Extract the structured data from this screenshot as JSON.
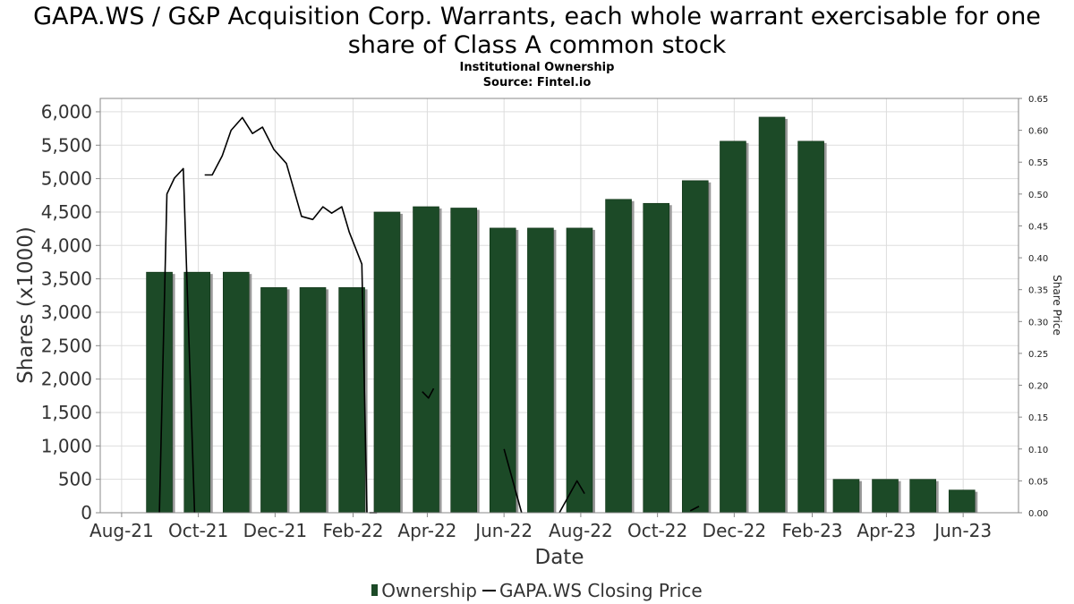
{
  "title_line1": "GAPA.WS / G&P Acquisition Corp. Warrants, each whole warrant exercisable for one",
  "title_line2": "share of Class A common stock",
  "subtitle_line1": "Institutional Ownership",
  "subtitle_line2": "Source: Fintel.io",
  "colors": {
    "bar": "#1c4a27",
    "bar_shadow": "#999999",
    "line": "#000000",
    "grid": "#dddddd"
  },
  "chart_data": {
    "type": "bar",
    "xlabel": "Date",
    "ylabel": "Shares (x1000)",
    "y2label": "Share Price",
    "ylim": [
      0,
      6200
    ],
    "y2lim": [
      0,
      0.65
    ],
    "yticks": [
      0,
      500,
      1000,
      1500,
      2000,
      2500,
      3000,
      3500,
      4000,
      4500,
      5000,
      5500,
      6000
    ],
    "ytick_labels": [
      "0",
      "500",
      "1,000",
      "1,500",
      "2,000",
      "2,500",
      "3,000",
      "3,500",
      "4,000",
      "4,500",
      "5,000",
      "5,500",
      "6,000"
    ],
    "y2ticks": [
      0,
      0.05,
      0.1,
      0.15,
      0.2,
      0.25,
      0.3,
      0.35,
      0.4,
      0.45,
      0.5,
      0.55,
      0.6,
      0.65
    ],
    "y2tick_labels": [
      "0.00",
      "0.05",
      "0.10",
      "0.15",
      "0.20",
      "0.25",
      "0.30",
      "0.35",
      "0.40",
      "0.45",
      "0.50",
      "0.55",
      "0.60",
      "0.65"
    ],
    "xlim": [
      "2021-07-15",
      "2023-07-15"
    ],
    "xticks": [
      "2021-08-01",
      "2021-10-01",
      "2021-12-01",
      "2022-02-01",
      "2022-04-01",
      "2022-06-01",
      "2022-08-01",
      "2022-10-01",
      "2022-12-01",
      "2023-02-01",
      "2023-04-01",
      "2023-06-01"
    ],
    "xtick_labels": [
      "Aug-21",
      "Oct-21",
      "Dec-21",
      "Feb-22",
      "Apr-22",
      "Jun-22",
      "Aug-22",
      "Oct-22",
      "Dec-22",
      "Feb-23",
      "Apr-23",
      "Jun-23"
    ],
    "grid": true,
    "legend_placement": "bottom",
    "series": [
      {
        "name": "Ownership",
        "kind": "bar",
        "axis": "left",
        "x": [
          "2021-08-31",
          "2021-09-30",
          "2021-10-31",
          "2021-11-30",
          "2021-12-31",
          "2022-01-31",
          "2022-02-28",
          "2022-03-31",
          "2022-04-30",
          "2022-05-31",
          "2022-06-30",
          "2022-07-31",
          "2022-08-31",
          "2022-09-30",
          "2022-10-31",
          "2022-11-30",
          "2022-12-31",
          "2023-01-31",
          "2023-02-28",
          "2023-03-31",
          "2023-04-30",
          "2023-05-31"
        ],
        "values": [
          3600,
          3600,
          3600,
          3370,
          3370,
          3370,
          4500,
          4580,
          4560,
          4260,
          4260,
          4260,
          4690,
          4630,
          4970,
          5560,
          5920,
          5560,
          500,
          500,
          500,
          340
        ]
      },
      {
        "name": "GAPA.WS Closing Price",
        "kind": "line",
        "axis": "right",
        "segments": [
          {
            "x": [
              "2021-08-31",
              "2021-09-06",
              "2021-09-12",
              "2021-09-19",
              "2021-09-28"
            ],
            "values": [
              0.0,
              0.5,
              0.525,
              0.54,
              0.0
            ]
          },
          {
            "x": [
              "2021-10-06",
              "2021-10-12",
              "2021-10-20",
              "2021-10-27",
              "2021-11-05",
              "2021-11-13",
              "2021-11-21",
              "2021-11-30",
              "2021-12-10",
              "2021-12-22",
              "2021-12-31",
              "2022-01-08",
              "2022-01-15",
              "2022-01-23",
              "2022-01-29",
              "2022-02-08",
              "2022-02-12"
            ],
            "values": [
              0.53,
              0.53,
              0.56,
              0.6,
              0.62,
              0.595,
              0.605,
              0.57,
              0.548,
              0.465,
              0.46,
              0.48,
              0.47,
              0.48,
              0.44,
              0.39,
              0.0
            ]
          },
          {
            "x": [
              "2022-03-28",
              "2022-04-02",
              "2022-04-06"
            ],
            "values": [
              0.19,
              0.18,
              0.195
            ]
          },
          {
            "x": [
              "2022-06-01",
              "2022-06-15"
            ],
            "values": [
              0.1,
              0.0
            ]
          },
          {
            "x": [
              "2022-07-15",
              "2022-07-29",
              "2022-08-04"
            ],
            "values": [
              0.0,
              0.05,
              0.03
            ]
          },
          {
            "x": [
              "2022-10-27",
              "2022-11-03"
            ],
            "values": [
              0.003,
              0.01
            ]
          },
          {
            "x": [
              "2022-02-14",
              "2022-02-20"
            ],
            "values": [
              0.0,
              0.0
            ]
          }
        ]
      }
    ]
  },
  "legend": {
    "ownership": "Ownership",
    "price": "GAPA.WS Closing Price"
  }
}
